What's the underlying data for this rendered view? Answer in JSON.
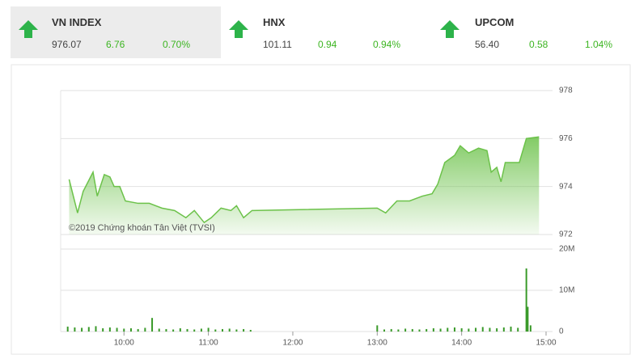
{
  "indices": [
    {
      "name": "VN INDEX",
      "value": "976.07",
      "change": "6.76",
      "percent": "0.70%"
    },
    {
      "name": "HNX",
      "value": "101.11",
      "change": "0.94",
      "percent": "0.94%"
    },
    {
      "name": "UPCOM",
      "value": "56.40",
      "change": "0.58",
      "percent": "1.04%"
    }
  ],
  "chart_data": [
    {
      "type": "area",
      "annotation": "©2019 Chứng khoán Tân Việt (TVSI)",
      "color": "#6cc24a",
      "x": [
        561,
        567,
        571,
        578,
        581,
        586,
        590,
        593,
        597,
        601,
        610,
        618,
        627,
        636,
        644,
        650,
        657,
        662,
        669,
        676,
        680,
        685,
        691,
        780,
        786,
        794,
        803,
        812,
        819,
        823,
        828,
        835,
        839,
        845,
        852,
        858,
        861,
        865,
        868,
        871,
        881,
        886,
        895
      ],
      "values": [
        974.3,
        972.9,
        973.8,
        974.6,
        973.6,
        974.5,
        974.4,
        974.0,
        974.0,
        973.4,
        973.3,
        973.3,
        973.1,
        973.0,
        972.7,
        973.0,
        972.5,
        972.7,
        973.1,
        973.0,
        973.2,
        972.7,
        973.0,
        973.1,
        972.9,
        973.4,
        973.4,
        973.6,
        973.7,
        974.1,
        975.0,
        975.3,
        975.7,
        975.4,
        975.6,
        975.5,
        974.6,
        974.8,
        974.2,
        975.0,
        975.0,
        976.0,
        976.07
      ],
      "xlim": [
        555,
        900
      ],
      "ylim": [
        972,
        978
      ],
      "yticks": [
        978,
        976,
        974,
        972
      ],
      "grid": true
    },
    {
      "type": "bar",
      "color": "#3a9a2a",
      "x": [
        560,
        565,
        570,
        575,
        580,
        585,
        590,
        595,
        600,
        605,
        610,
        615,
        620,
        625,
        630,
        635,
        640,
        645,
        650,
        655,
        660,
        665,
        670,
        675,
        680,
        685,
        690,
        780,
        785,
        790,
        795,
        800,
        805,
        810,
        815,
        820,
        825,
        830,
        835,
        840,
        845,
        850,
        855,
        860,
        865,
        870,
        875,
        880,
        886,
        887,
        889
      ],
      "values": [
        1200000,
        1000000,
        900000,
        1100000,
        1300000,
        800000,
        1000000,
        900000,
        700000,
        800000,
        600000,
        900000,
        3300000,
        700000,
        600000,
        500000,
        800000,
        600000,
        500000,
        700000,
        900000,
        500000,
        600000,
        700000,
        500000,
        600000,
        400000,
        1500000,
        500000,
        600000,
        500000,
        700000,
        600000,
        500000,
        600000,
        800000,
        700000,
        900000,
        1000000,
        800000,
        700000,
        900000,
        1100000,
        900000,
        800000,
        1000000,
        1200000,
        900000,
        15300000,
        6000000,
        1500000
      ],
      "xlim": [
        555,
        900
      ],
      "ylim": [
        0,
        20000000
      ],
      "yticks": [
        {
          "value": 20000000,
          "label": "20M"
        },
        {
          "value": 10000000,
          "label": "10M"
        },
        0
      ],
      "xticks": [
        {
          "value": 600,
          "label": "10:00"
        },
        {
          "value": 660,
          "label": "11:00"
        },
        {
          "value": 720,
          "label": "12:00"
        },
        {
          "value": 780,
          "label": "13:00"
        },
        {
          "value": 840,
          "label": "14:00"
        },
        {
          "value": 900,
          "label": "15:00"
        }
      ],
      "grid": true
    }
  ]
}
